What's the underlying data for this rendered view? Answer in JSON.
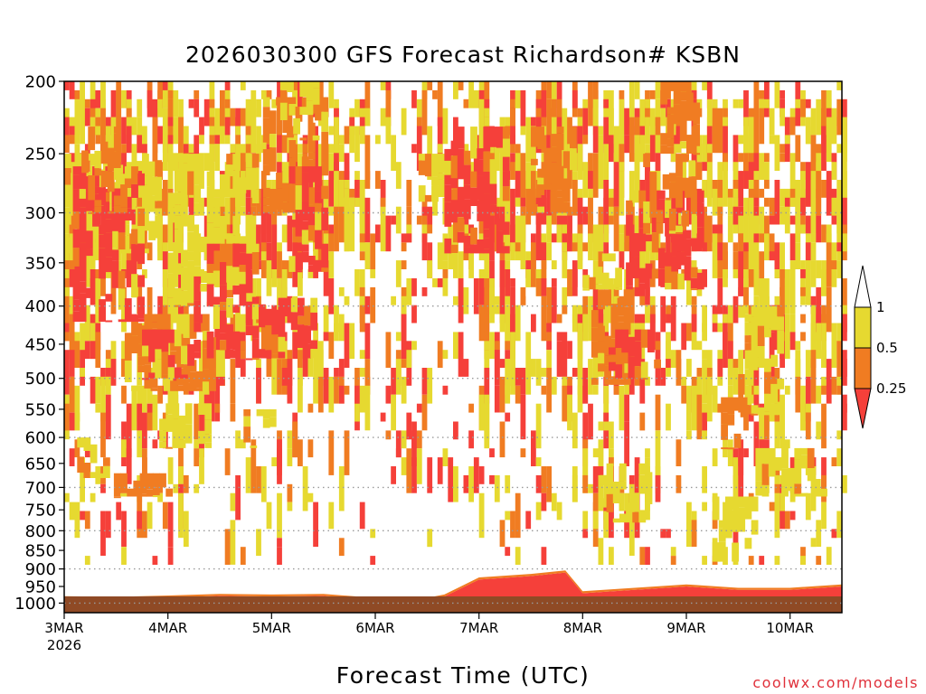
{
  "chart_data": {
    "type": "heatmap",
    "title": "2026030300 GFS Forecast Richardson# KSBN",
    "xlabel": "Forecast Time (UTC)",
    "ylabel": "",
    "y_scale": "log",
    "y_reversed": true,
    "ylim": [
      1030,
      200
    ],
    "y_ticks": [
      200,
      250,
      300,
      350,
      400,
      450,
      500,
      550,
      600,
      650,
      700,
      750,
      800,
      850,
      900,
      950,
      1000
    ],
    "y_gridlines": [
      300,
      400,
      500,
      600,
      700,
      800,
      900,
      1000
    ],
    "xlim_hours": [
      0,
      180
    ],
    "x_ticks": [
      {
        "label": "3MAR",
        "sublabel": "2026",
        "hour": 0
      },
      {
        "label": "4MAR",
        "hour": 24
      },
      {
        "label": "5MAR",
        "hour": 48
      },
      {
        "label": "6MAR",
        "hour": 72
      },
      {
        "label": "7MAR",
        "hour": 96
      },
      {
        "label": "8MAR",
        "hour": 120
      },
      {
        "label": "9MAR",
        "hour": 144
      },
      {
        "label": "10MAR",
        "hour": 168
      }
    ],
    "legend": {
      "placement": "right",
      "levels": [
        "1",
        "0.5",
        "0.25"
      ],
      "bins": [
        {
          "range": "0.5-1",
          "color": "#e6d930"
        },
        {
          "range": "0.25-0.5",
          "color": "#f07c22"
        },
        {
          "range": "<0.25",
          "color": "#f5403a"
        }
      ]
    },
    "colors": {
      "yellow": "#e6d930",
      "orange": "#f07c22",
      "red": "#f5403a",
      "ground": "#8f4a25",
      "grid": "#9a9a9a"
    },
    "regions": [
      {
        "hours": [
          0,
          22
        ],
        "p": [
          250,
          340
        ],
        "bin": 0
      },
      {
        "hours": [
          2,
          18
        ],
        "p": [
          260,
          420
        ],
        "bin": 2
      },
      {
        "hours": [
          4,
          14
        ],
        "p": [
          230,
          300
        ],
        "bin": 1
      },
      {
        "hours": [
          14,
          34
        ],
        "p": [
          410,
          520
        ],
        "bin": 1
      },
      {
        "hours": [
          18,
          30
        ],
        "p": [
          430,
          500
        ],
        "bin": 2
      },
      {
        "hours": [
          24,
          44
        ],
        "p": [
          250,
          400
        ],
        "bin": 0
      },
      {
        "hours": [
          30,
          44
        ],
        "p": [
          330,
          470
        ],
        "bin": 2
      },
      {
        "hours": [
          42,
          58
        ],
        "p": [
          390,
          470
        ],
        "bin": 2
      },
      {
        "hours": [
          46,
          60
        ],
        "p": [
          210,
          300
        ],
        "bin": 1
      },
      {
        "hours": [
          52,
          60
        ],
        "p": [
          260,
          360
        ],
        "bin": 2
      },
      {
        "hours": [
          50,
          58
        ],
        "p": [
          200,
          240
        ],
        "bin": 0
      },
      {
        "hours": [
          22,
          34
        ],
        "p": [
          540,
          620
        ],
        "bin": 0
      },
      {
        "hours": [
          40,
          48
        ],
        "p": [
          550,
          620
        ],
        "bin": 0
      },
      {
        "hours": [
          0,
          10
        ],
        "p": [
          600,
          680
        ],
        "bin": 0
      },
      {
        "hours": [
          10,
          24
        ],
        "p": [
          670,
          720
        ],
        "bin": 1
      },
      {
        "hours": [
          82,
          90
        ],
        "p": [
          250,
          290
        ],
        "bin": 0
      },
      {
        "hours": [
          88,
          102
        ],
        "p": [
          230,
          340
        ],
        "bin": 2
      },
      {
        "hours": [
          108,
          118
        ],
        "p": [
          230,
          300
        ],
        "bin": 1
      },
      {
        "hours": [
          122,
          130
        ],
        "p": [
          380,
          510
        ],
        "bin": 1
      },
      {
        "hours": [
          126,
          138
        ],
        "p": [
          430,
          500
        ],
        "bin": 2
      },
      {
        "hours": [
          130,
          148
        ],
        "p": [
          280,
          380
        ],
        "bin": 2
      },
      {
        "hours": [
          134,
          146
        ],
        "p": [
          250,
          320
        ],
        "bin": 1
      },
      {
        "hours": [
          138,
          146
        ],
        "p": [
          200,
          250
        ],
        "bin": 1
      },
      {
        "hours": [
          120,
          128
        ],
        "p": [
          340,
          380
        ],
        "bin": 0
      },
      {
        "hours": [
          156,
          166
        ],
        "p": [
          400,
          560
        ],
        "bin": 0
      },
      {
        "hours": [
          152,
          158
        ],
        "p": [
          530,
          620
        ],
        "bin": 1
      },
      {
        "hours": [
          124,
          136
        ],
        "p": [
          650,
          780
        ],
        "bin": 0
      },
      {
        "hours": [
          160,
          176
        ],
        "p": [
          620,
          720
        ],
        "bin": 0
      },
      {
        "hours": [
          150,
          160
        ],
        "p": [
          720,
          880
        ],
        "bin": 0
      }
    ],
    "surface_layer": [
      {
        "hour": 0,
        "top": 985,
        "bottom": 1002
      },
      {
        "hour": 12,
        "top": 987,
        "bottom": 1002
      },
      {
        "hour": 24,
        "top": 983,
        "bottom": 1002
      },
      {
        "hour": 36,
        "top": 978,
        "bottom": 1002
      },
      {
        "hour": 48,
        "top": 980,
        "bottom": 1002
      },
      {
        "hour": 60,
        "top": 978,
        "bottom": 1002
      },
      {
        "hour": 72,
        "top": 990,
        "bottom": 1002
      },
      {
        "hour": 80,
        "top": 1000,
        "bottom": 1002
      },
      {
        "hour": 88,
        "top": 980,
        "bottom": 1002
      },
      {
        "hour": 96,
        "top": 930,
        "bottom": 1002
      },
      {
        "hour": 108,
        "top": 920,
        "bottom": 1002
      },
      {
        "hour": 116,
        "top": 910,
        "bottom": 1002
      },
      {
        "hour": 120,
        "top": 970,
        "bottom": 1002
      },
      {
        "hour": 132,
        "top": 960,
        "bottom": 1002
      },
      {
        "hour": 144,
        "top": 950,
        "bottom": 1002
      },
      {
        "hour": 156,
        "top": 960,
        "bottom": 1002
      },
      {
        "hour": 168,
        "top": 960,
        "bottom": 1002
      },
      {
        "hour": 180,
        "top": 950,
        "bottom": 1002
      }
    ]
  },
  "credit": "coolwx.com/models"
}
